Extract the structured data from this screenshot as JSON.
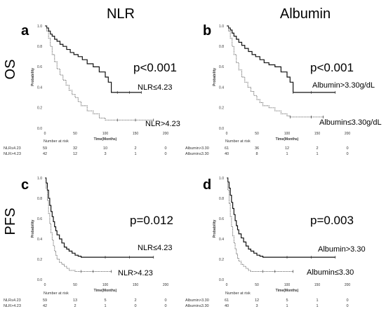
{
  "figure": {
    "col_titles": [
      "NLR",
      "Albumin"
    ],
    "row_titles": [
      "OS",
      "PFS"
    ]
  },
  "chart_data": [
    {
      "type": "line",
      "panel": "a",
      "xlabel": "Time(Months)",
      "ylabel": "Probability",
      "xlim": [
        0,
        200
      ],
      "ylim": [
        0,
        1.0
      ],
      "xticks": [
        "0",
        "50",
        "100",
        "150",
        "200"
      ],
      "yticks": [
        "0.0",
        "0.2",
        "0.4",
        "0.6",
        "0.8",
        "1.0"
      ],
      "annotation": "p<0.001",
      "series": [
        {
          "name": "NLR≤4.23",
          "style": "solid",
          "x": [
            0,
            3,
            6,
            9,
            12,
            16,
            20,
            25,
            30,
            36,
            42,
            48,
            55,
            62,
            70,
            80,
            90,
            100,
            105,
            110,
            120,
            140,
            160
          ],
          "y": [
            1.0,
            0.98,
            0.95,
            0.92,
            0.9,
            0.87,
            0.85,
            0.82,
            0.8,
            0.77,
            0.74,
            0.72,
            0.7,
            0.67,
            0.63,
            0.6,
            0.55,
            0.5,
            0.45,
            0.35,
            0.35,
            0.35,
            0.35
          ]
        },
        {
          "name": "NLR>4.23",
          "style": "dotted",
          "x": [
            0,
            3,
            6,
            9,
            12,
            16,
            20,
            25,
            30,
            35,
            40,
            45,
            50,
            55,
            60,
            70,
            80,
            90,
            100,
            120,
            150,
            180
          ],
          "y": [
            1.0,
            0.95,
            0.88,
            0.8,
            0.72,
            0.65,
            0.58,
            0.52,
            0.47,
            0.42,
            0.37,
            0.33,
            0.3,
            0.26,
            0.22,
            0.17,
            0.14,
            0.1,
            0.08,
            0.08,
            0.08,
            0.08
          ]
        }
      ],
      "risk_table": {
        "title": "Number at risk",
        "rows": [
          {
            "label": "NLR≤4.23",
            "values": [
              "59",
              "32",
              "10",
              "2",
              "0"
            ]
          },
          {
            "label": "NLR>4.23",
            "values": [
              "42",
              "12",
              "3",
              "1",
              "0"
            ]
          }
        ]
      }
    },
    {
      "type": "line",
      "panel": "b",
      "xlabel": "Time(Months)",
      "ylabel": "Probability",
      "xlim": [
        0,
        200
      ],
      "ylim": [
        0,
        1.0
      ],
      "xticks": [
        "0",
        "50",
        "100",
        "150",
        "200"
      ],
      "yticks": [
        "0.0",
        "0.2",
        "0.4",
        "0.6",
        "0.8",
        "1.0"
      ],
      "annotation": "p<0.001",
      "series": [
        {
          "name": "Albumin>3.30g/dL",
          "style": "solid",
          "x": [
            0,
            3,
            6,
            9,
            12,
            16,
            20,
            25,
            30,
            36,
            42,
            48,
            55,
            62,
            70,
            80,
            90,
            100,
            105,
            110,
            140,
            180
          ],
          "y": [
            1.0,
            0.98,
            0.96,
            0.93,
            0.9,
            0.87,
            0.84,
            0.81,
            0.78,
            0.75,
            0.72,
            0.7,
            0.67,
            0.64,
            0.62,
            0.6,
            0.55,
            0.5,
            0.45,
            0.35,
            0.35,
            0.35
          ]
        },
        {
          "name": "Albumin≤3.30g/dL",
          "style": "dotted",
          "x": [
            0,
            3,
            6,
            9,
            12,
            16,
            20,
            25,
            30,
            35,
            40,
            45,
            50,
            55,
            60,
            70,
            80,
            90,
            100,
            105,
            140,
            160
          ],
          "y": [
            1.0,
            0.95,
            0.88,
            0.8,
            0.72,
            0.64,
            0.57,
            0.5,
            0.45,
            0.4,
            0.36,
            0.32,
            0.28,
            0.25,
            0.22,
            0.2,
            0.17,
            0.14,
            0.12,
            0.11,
            0.11,
            0.11
          ]
        }
      ],
      "risk_table": {
        "title": "Number at risk",
        "rows": [
          {
            "label": "Albumin>3.30",
            "values": [
              "61",
              "36",
              "12",
              "2",
              "0"
            ]
          },
          {
            "label": "Albumin≤3.30",
            "values": [
              "40",
              "8",
              "1",
              "1",
              "0"
            ]
          }
        ]
      }
    },
    {
      "type": "line",
      "panel": "c",
      "xlabel": "Time(Months)",
      "ylabel": "Probability",
      "xlim": [
        0,
        200
      ],
      "ylim": [
        0,
        1.0
      ],
      "xticks": [
        "0",
        "50",
        "100",
        "150",
        "200"
      ],
      "yticks": [
        "0.0",
        "0.2",
        "0.4",
        "0.6",
        "0.8",
        "1.0"
      ],
      "annotation": "p=0.012",
      "series": [
        {
          "name": "NLR≤4.23",
          "style": "solid",
          "x": [
            0,
            2,
            4,
            6,
            8,
            10,
            12,
            14,
            16,
            18,
            20,
            24,
            28,
            32,
            36,
            40,
            45,
            50,
            55,
            60,
            70,
            80,
            100,
            140,
            180
          ],
          "y": [
            1.0,
            0.95,
            0.88,
            0.8,
            0.73,
            0.67,
            0.62,
            0.57,
            0.52,
            0.48,
            0.44,
            0.4,
            0.36,
            0.32,
            0.3,
            0.28,
            0.26,
            0.24,
            0.23,
            0.22,
            0.22,
            0.22,
            0.22,
            0.22,
            0.22
          ]
        },
        {
          "name": "NLR>4.23",
          "style": "dotted",
          "x": [
            0,
            2,
            4,
            6,
            8,
            10,
            12,
            14,
            16,
            18,
            20,
            24,
            28,
            32,
            36,
            40,
            50,
            60,
            80,
            110
          ],
          "y": [
            1.0,
            0.9,
            0.78,
            0.65,
            0.55,
            0.46,
            0.39,
            0.33,
            0.28,
            0.24,
            0.2,
            0.17,
            0.15,
            0.13,
            0.11,
            0.09,
            0.08,
            0.08,
            0.08,
            0.08
          ]
        }
      ],
      "risk_table": {
        "title": "Number at risk",
        "rows": [
          {
            "label": "NLR≤4.23",
            "values": [
              "59",
              "13",
              "5",
              "2",
              "0"
            ]
          },
          {
            "label": "NLR>4.23",
            "values": [
              "42",
              "2",
              "1",
              "0",
              "0"
            ]
          }
        ]
      }
    },
    {
      "type": "line",
      "panel": "d",
      "xlabel": "Time(Months)",
      "ylabel": "Probability",
      "xlim": [
        0,
        200
      ],
      "ylim": [
        0,
        1.0
      ],
      "xticks": [
        "0",
        "50",
        "100",
        "150",
        "200"
      ],
      "yticks": [
        "0.0",
        "0.2",
        "0.4",
        "0.6",
        "0.8",
        "1.0"
      ],
      "annotation": "p=0.003",
      "series": [
        {
          "name": "Albumin>3.30",
          "style": "solid",
          "x": [
            0,
            2,
            4,
            6,
            8,
            10,
            12,
            14,
            16,
            18,
            20,
            24,
            28,
            32,
            36,
            40,
            45,
            50,
            55,
            60,
            70,
            80,
            100,
            140,
            180
          ],
          "y": [
            1.0,
            0.96,
            0.9,
            0.83,
            0.76,
            0.7,
            0.64,
            0.58,
            0.53,
            0.49,
            0.45,
            0.41,
            0.37,
            0.33,
            0.3,
            0.28,
            0.26,
            0.24,
            0.23,
            0.22,
            0.22,
            0.22,
            0.22,
            0.22,
            0.22
          ]
        },
        {
          "name": "Albumin≤3.30",
          "style": "dotted",
          "x": [
            0,
            2,
            4,
            6,
            8,
            10,
            12,
            14,
            16,
            18,
            20,
            24,
            28,
            32,
            36,
            40,
            50,
            60,
            80,
            110
          ],
          "y": [
            1.0,
            0.88,
            0.75,
            0.62,
            0.52,
            0.43,
            0.36,
            0.3,
            0.25,
            0.21,
            0.18,
            0.15,
            0.13,
            0.11,
            0.09,
            0.08,
            0.08,
            0.08,
            0.08,
            0.08
          ]
        }
      ],
      "risk_table": {
        "title": "Number at risk",
        "rows": [
          {
            "label": "Albumin>3.30",
            "values": [
              "61",
              "12",
              "5",
              "1",
              "0"
            ]
          },
          {
            "label": "Albumin≤3.30",
            "values": [
              "40",
              "3",
              "1",
              "1",
              "0"
            ]
          }
        ]
      }
    }
  ]
}
